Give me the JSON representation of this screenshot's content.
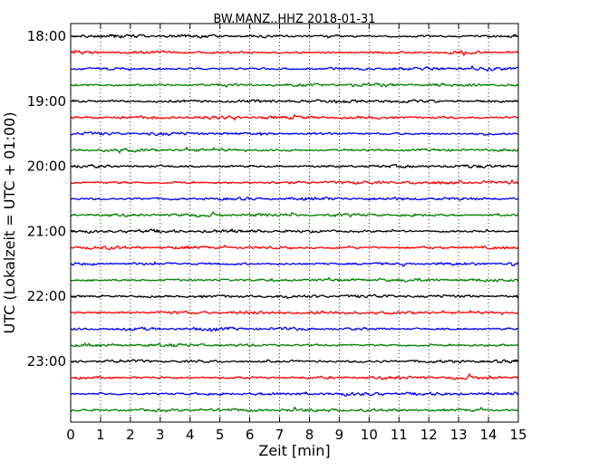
{
  "chart_data": {
    "type": "line",
    "title": "BW.MANZ..HHZ 2018-01-31",
    "xlabel": "Zeit  [min]",
    "ylabel": "UTC (Lokalzeit = UTC + 01:00)",
    "xlim": [
      0,
      15
    ],
    "x_ticks": [
      "0",
      "1",
      "2",
      "3",
      "4",
      "5",
      "6",
      "7",
      "8",
      "9",
      "10",
      "11",
      "12",
      "13",
      "14",
      "15"
    ],
    "y_ticks": [
      "18:00",
      "19:00",
      "20:00",
      "21:00",
      "22:00",
      "23:00"
    ],
    "grid": "vertical dotted",
    "trace_colors": [
      "#000000",
      "#ff0000",
      "#0000ff",
      "#008000"
    ],
    "traces": [
      {
        "start": "18:00"
      },
      {
        "start": "18:15"
      },
      {
        "start": "18:30"
      },
      {
        "start": "18:45"
      },
      {
        "start": "19:00"
      },
      {
        "start": "19:15"
      },
      {
        "start": "19:30"
      },
      {
        "start": "19:45"
      },
      {
        "start": "20:00"
      },
      {
        "start": "20:15"
      },
      {
        "start": "20:30"
      },
      {
        "start": "20:45"
      },
      {
        "start": "21:00"
      },
      {
        "start": "21:15"
      },
      {
        "start": "21:30"
      },
      {
        "start": "21:45"
      },
      {
        "start": "22:00"
      },
      {
        "start": "22:15"
      },
      {
        "start": "22:30"
      },
      {
        "start": "22:45"
      },
      {
        "start": "23:00"
      },
      {
        "start": "23:15"
      },
      {
        "start": "23:30"
      },
      {
        "start": "23:45"
      }
    ]
  }
}
